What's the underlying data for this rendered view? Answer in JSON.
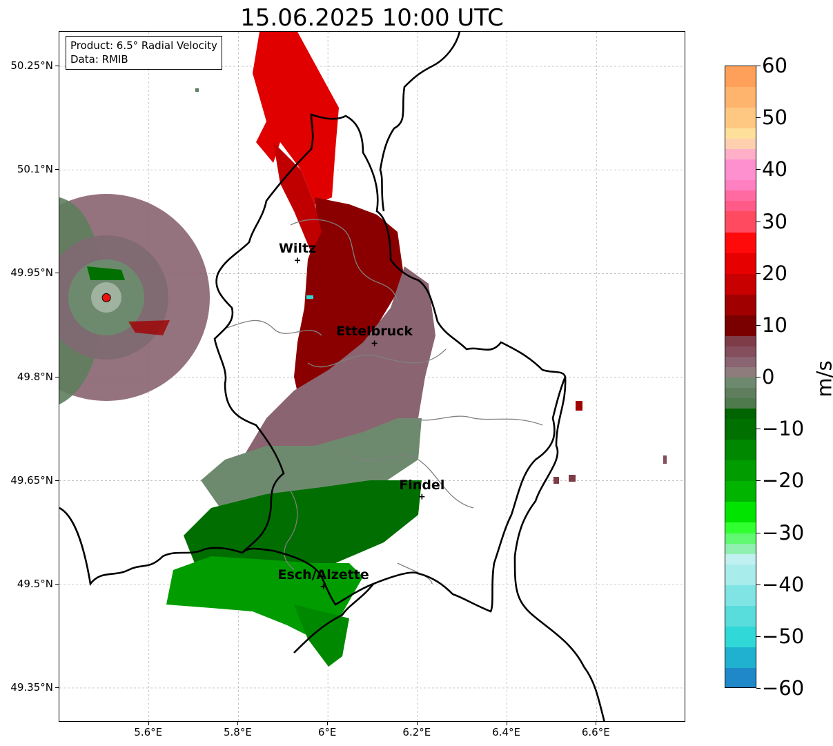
{
  "title": "15.06.2025 10:00 UTC",
  "info": {
    "product": "Product: 6.5° Radial Velocity",
    "data": "Data: RMIB"
  },
  "lat_ticks": [
    {
      "label": "50.25°N",
      "value": 50.25
    },
    {
      "label": "50.1°N",
      "value": 50.1
    },
    {
      "label": "49.95°N",
      "value": 49.95
    },
    {
      "label": "49.8°N",
      "value": 49.8
    },
    {
      "label": "49.65°N",
      "value": 49.65
    },
    {
      "label": "49.5°N",
      "value": 49.5
    },
    {
      "label": "49.35°N",
      "value": 49.35
    }
  ],
  "lon_ticks": [
    {
      "label": "5.6°E",
      "value": 5.6
    },
    {
      "label": "5.8°E",
      "value": 5.8
    },
    {
      "label": "6°E",
      "value": 6.0
    },
    {
      "label": "6.2°E",
      "value": 6.2
    },
    {
      "label": "6.4°E",
      "value": 6.4
    },
    {
      "label": "6.6°E",
      "value": 6.6
    }
  ],
  "extent": {
    "lon_min": 5.4,
    "lon_max": 6.8,
    "lat_min": 49.3,
    "lat_max": 50.3
  },
  "cities": [
    {
      "name": "Wiltz",
      "lon": 5.932,
      "lat": 49.969
    },
    {
      "name": "Ettelbruck",
      "lon": 6.104,
      "lat": 49.849
    },
    {
      "name": "Findel",
      "lon": 6.21,
      "lat": 49.627
    },
    {
      "name": "Esch/Alzette",
      "lon": 5.99,
      "lat": 49.497
    }
  ],
  "radar_site": {
    "lon": 5.505,
    "lat": 49.915,
    "color": "#e8140c"
  },
  "colorbar": {
    "unit": "m/s",
    "min": -60,
    "max": 60,
    "ticks": [
      {
        "label": "60",
        "value": 60
      },
      {
        "label": "50",
        "value": 50
      },
      {
        "label": "40",
        "value": 40
      },
      {
        "label": "30",
        "value": 30
      },
      {
        "label": "20",
        "value": 20
      },
      {
        "label": "10",
        "value": 10
      },
      {
        "label": "0",
        "value": 0
      },
      {
        "label": "−10",
        "value": -10
      },
      {
        "label": "−20",
        "value": -20
      },
      {
        "label": "−30",
        "value": -30
      },
      {
        "label": "−40",
        "value": -40
      },
      {
        "label": "−50",
        "value": -50
      },
      {
        "label": "−60",
        "value": -60
      }
    ],
    "stops": [
      {
        "from": 56,
        "to": 60,
        "color": "#ffa05a"
      },
      {
        "from": 52,
        "to": 56,
        "color": "#ffb46e"
      },
      {
        "from": 48,
        "to": 52,
        "color": "#ffc882"
      },
      {
        "from": 46,
        "to": 48,
        "color": "#ffe09a"
      },
      {
        "from": 44,
        "to": 46,
        "color": "#ffd0b0"
      },
      {
        "from": 42,
        "to": 44,
        "color": "#ffb0c8"
      },
      {
        "from": 38,
        "to": 42,
        "color": "#ff90d0"
      },
      {
        "from": 36,
        "to": 38,
        "color": "#ff80c0"
      },
      {
        "from": 34,
        "to": 36,
        "color": "#ff6aa0"
      },
      {
        "from": 32,
        "to": 34,
        "color": "#ff5a88"
      },
      {
        "from": 28,
        "to": 32,
        "color": "#ff4a60"
      },
      {
        "from": 24,
        "to": 28,
        "color": "#ff0a0a"
      },
      {
        "from": 20,
        "to": 24,
        "color": "#e60000"
      },
      {
        "from": 16,
        "to": 20,
        "color": "#c80000"
      },
      {
        "from": 12,
        "to": 16,
        "color": "#a00000"
      },
      {
        "from": 8,
        "to": 12,
        "color": "#7a0000"
      },
      {
        "from": 6,
        "to": 8,
        "color": "#7e3b48"
      },
      {
        "from": 4,
        "to": 6,
        "color": "#844e5c"
      },
      {
        "from": 2,
        "to": 4,
        "color": "#8a6470"
      },
      {
        "from": 0,
        "to": 2,
        "color": "#8e7c7c"
      },
      {
        "from": -2,
        "to": 0,
        "color": "#6e8a6e"
      },
      {
        "from": -4,
        "to": -2,
        "color": "#5e7e5e"
      },
      {
        "from": -6,
        "to": -4,
        "color": "#4e7a4e"
      },
      {
        "from": -8,
        "to": -6,
        "color": "#006400"
      },
      {
        "from": -12,
        "to": -8,
        "color": "#007000"
      },
      {
        "from": -16,
        "to": -12,
        "color": "#008800"
      },
      {
        "from": -20,
        "to": -16,
        "color": "#009c00"
      },
      {
        "from": -24,
        "to": -20,
        "color": "#00b400"
      },
      {
        "from": -28,
        "to": -24,
        "color": "#00e400"
      },
      {
        "from": -30,
        "to": -28,
        "color": "#30ff30"
      },
      {
        "from": -32,
        "to": -30,
        "color": "#60f870"
      },
      {
        "from": -34,
        "to": -32,
        "color": "#90f0b0"
      },
      {
        "from": -36,
        "to": -34,
        "color": "#c0f0f0"
      },
      {
        "from": -40,
        "to": -36,
        "color": "#a8ecec"
      },
      {
        "from": -44,
        "to": -40,
        "color": "#80e4e4"
      },
      {
        "from": -48,
        "to": -44,
        "color": "#58dcdc"
      },
      {
        "from": -52,
        "to": -48,
        "color": "#30d8d8"
      },
      {
        "from": -56,
        "to": -52,
        "color": "#20b0d0"
      },
      {
        "from": -60,
        "to": -56,
        "color": "#1e88c8"
      }
    ]
  },
  "colors": {
    "grid": "#b0b0b0",
    "border": "#000000",
    "canton": "#808080"
  }
}
